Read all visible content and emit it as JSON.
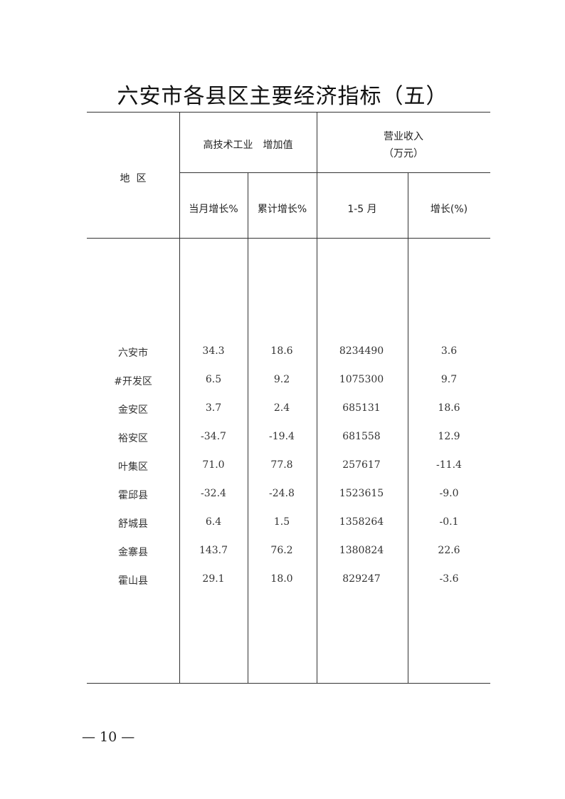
{
  "title": "六安市各县区主要经济指标（五）",
  "headers": {
    "region": "地  区",
    "hitech_group": "高技术工业　增加值",
    "revenue_group_line1": "营业收入",
    "revenue_group_line2": "（万元）",
    "monthly_growth": "当月增长%",
    "cumulative_growth": "累计增长%",
    "jan_may": "1-5 月",
    "growth": "增长(%)"
  },
  "rows": [
    {
      "region": "六安市",
      "monthly": "34.3",
      "cumulative": "18.6",
      "revenue": "8234490",
      "growth": "3.6"
    },
    {
      "region": "#开发区",
      "monthly": "6.5",
      "cumulative": "9.2",
      "revenue": "1075300",
      "growth": "9.7"
    },
    {
      "region": "金安区",
      "monthly": "3.7",
      "cumulative": "2.4",
      "revenue": "685131",
      "growth": "18.6"
    },
    {
      "region": "裕安区",
      "monthly": "-34.7",
      "cumulative": "-19.4",
      "revenue": "681558",
      "growth": "12.9"
    },
    {
      "region": "叶集区",
      "monthly": "71.0",
      "cumulative": "77.8",
      "revenue": "257617",
      "growth": "-11.4"
    },
    {
      "region": "霍邱县",
      "monthly": "-32.4",
      "cumulative": "-24.8",
      "revenue": "1523615",
      "growth": "-9.0"
    },
    {
      "region": "舒城县",
      "monthly": "6.4",
      "cumulative": "1.5",
      "revenue": "1358264",
      "growth": "-0.1"
    },
    {
      "region": "金寨县",
      "monthly": "143.7",
      "cumulative": "76.2",
      "revenue": "1380824",
      "growth": "22.6"
    },
    {
      "region": "霍山县",
      "monthly": "29.1",
      "cumulative": "18.0",
      "revenue": "829247",
      "growth": "-3.6"
    }
  ],
  "page_number": "— 10 —"
}
